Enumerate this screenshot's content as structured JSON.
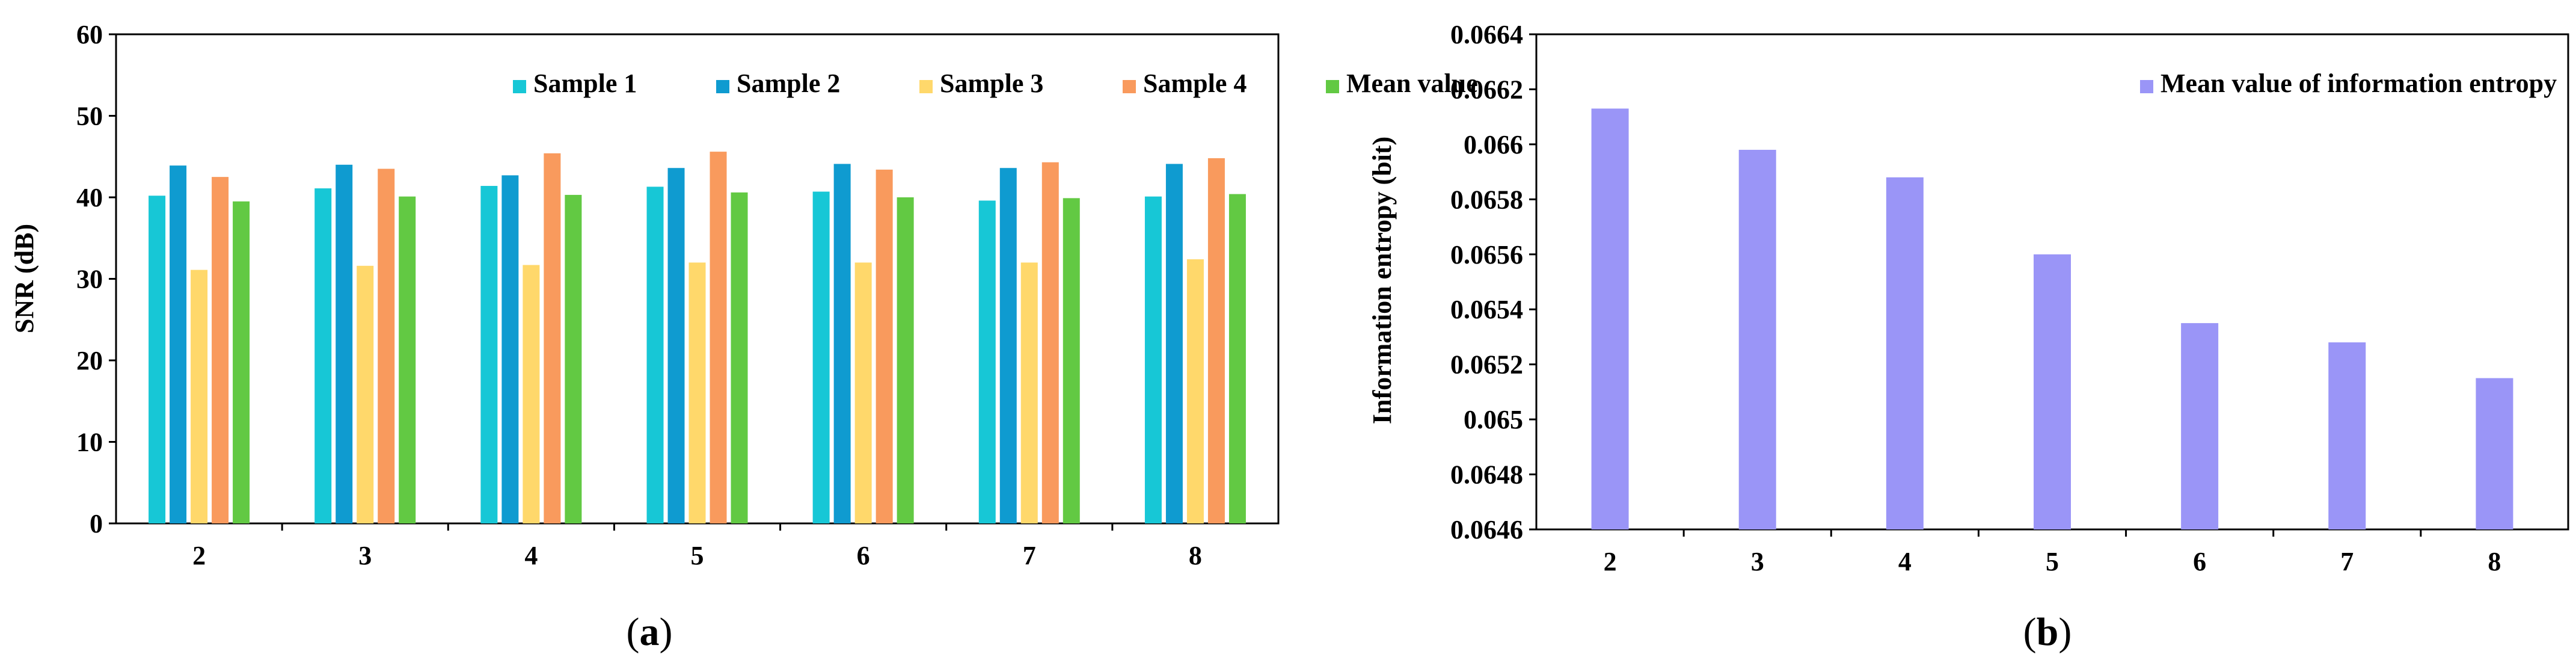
{
  "chart_data": [
    {
      "type": "bar",
      "panel": "a",
      "caption_open": "(",
      "caption_letter": "a",
      "caption_close": ")",
      "title": "",
      "xlabel": "",
      "ylabel": "SNR (dB)",
      "ylim": [
        0,
        60
      ],
      "yticks": [
        "0",
        "10",
        "20",
        "30",
        "40",
        "50",
        "60"
      ],
      "categories": [
        "2",
        "3",
        "4",
        "5",
        "6",
        "7",
        "8"
      ],
      "legend_position": "top-right",
      "series": [
        {
          "name": "Sample 1",
          "color": "#17c7d6",
          "values": [
            40.2,
            41.1,
            41.4,
            41.3,
            40.7,
            39.6,
            40.1
          ]
        },
        {
          "name": "Sample 2",
          "color": "#0f9bd0",
          "values": [
            43.9,
            44.0,
            42.7,
            43.6,
            44.1,
            43.6,
            44.1
          ]
        },
        {
          "name": "Sample 3",
          "color": "#ffd86b",
          "values": [
            31.1,
            31.6,
            31.7,
            32.0,
            32.0,
            32.0,
            32.4
          ]
        },
        {
          "name": "Sample 4",
          "color": "#f99a5d",
          "values": [
            42.5,
            43.5,
            45.4,
            45.6,
            43.4,
            44.3,
            44.8
          ]
        },
        {
          "name": "Mean value",
          "color": "#62c943",
          "values": [
            39.5,
            40.1,
            40.3,
            40.6,
            40.0,
            39.9,
            40.4
          ]
        }
      ]
    },
    {
      "type": "bar",
      "panel": "b",
      "caption_open": "(",
      "caption_letter": "b",
      "caption_close": ")",
      "title": "",
      "xlabel": "",
      "ylabel": "Information entropy (bit)",
      "ylim": [
        0.0646,
        0.0664
      ],
      "yticks": [
        "0.0646",
        "0.0648",
        "0.065",
        "0.0652",
        "0.0654",
        "0.0656",
        "0.0658",
        "0.066",
        "0.0662",
        "0.0664"
      ],
      "categories": [
        "2",
        "3",
        "4",
        "5",
        "6",
        "7",
        "8"
      ],
      "legend_position": "top-right",
      "series": [
        {
          "name": "Mean value of information entropy",
          "color": "#9a95f7",
          "values": [
            0.06613,
            0.06598,
            0.06588,
            0.0656,
            0.06535,
            0.06528,
            0.06515
          ]
        }
      ]
    }
  ]
}
